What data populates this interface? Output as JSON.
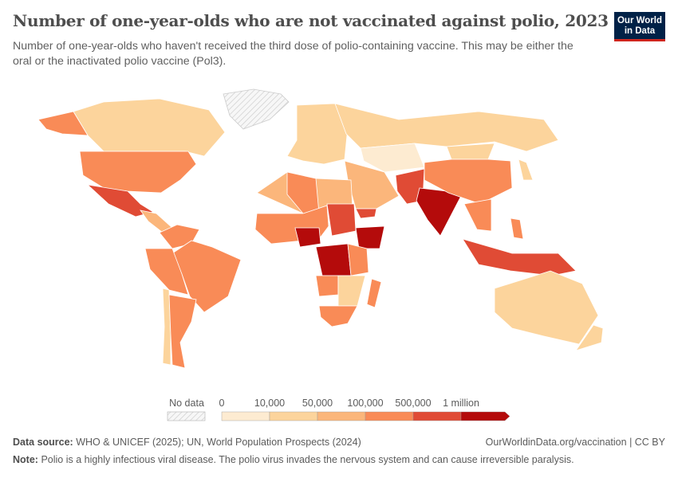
{
  "header": {
    "title": "Number of one-year-olds who are not vaccinated against polio, 2023",
    "subtitle": "Number of one-year-olds who haven't received the third dose of polio-containing vaccine. This may be either the oral or the inactivated polio vaccine (Pol3).",
    "logo_text": "Our World in Data"
  },
  "chart_data": {
    "type": "choropleth-map",
    "year": 2023,
    "legend": {
      "no_data_label": "No data",
      "tick_labels": [
        "0",
        "10,000",
        "50,000",
        "100,000",
        "500,000",
        "1 million"
      ],
      "bins": [
        {
          "range": [
            0,
            10000
          ],
          "color": "#fdebd1"
        },
        {
          "range": [
            10000,
            50000
          ],
          "color": "#fcd49c"
        },
        {
          "range": [
            50000,
            100000
          ],
          "color": "#fbb67b"
        },
        {
          "range": [
            100000,
            500000
          ],
          "color": "#f98b57"
        },
        {
          "range": [
            500000,
            1000000
          ],
          "color": "#e04b35"
        },
        {
          "range": [
            1000000,
            null
          ],
          "color": "#b40b0b"
        }
      ],
      "no_data_color": "hatched"
    },
    "regions": [
      {
        "name": "Greenland",
        "bin": -1
      },
      {
        "name": "Canada",
        "bin": 1
      },
      {
        "name": "Alaska",
        "bin": 3
      },
      {
        "name": "United States",
        "bin": 3
      },
      {
        "name": "Mexico",
        "bin": 4
      },
      {
        "name": "Central America",
        "bin": 2
      },
      {
        "name": "Colombia / Venezuela",
        "bin": 3
      },
      {
        "name": "Brazil",
        "bin": 3
      },
      {
        "name": "Peru / Bolivia",
        "bin": 3
      },
      {
        "name": "Chile",
        "bin": 1
      },
      {
        "name": "Argentina",
        "bin": 3
      },
      {
        "name": "Europe",
        "bin": 1
      },
      {
        "name": "Russia",
        "bin": 1
      },
      {
        "name": "Central Asia",
        "bin": 0
      },
      {
        "name": "Mongolia",
        "bin": 1
      },
      {
        "name": "Middle East",
        "bin": 2
      },
      {
        "name": "Yemen",
        "bin": 4
      },
      {
        "name": "Pakistan / Afghanistan",
        "bin": 4
      },
      {
        "name": "India",
        "bin": 5
      },
      {
        "name": "China",
        "bin": 3
      },
      {
        "name": "Japan",
        "bin": 1
      },
      {
        "name": "Southeast Asia",
        "bin": 3
      },
      {
        "name": "Philippines",
        "bin": 3
      },
      {
        "name": "Indonesia",
        "bin": 4
      },
      {
        "name": "Australia",
        "bin": 1
      },
      {
        "name": "New Zealand",
        "bin": 1
      },
      {
        "name": "North Africa",
        "bin": 2
      },
      {
        "name": "Algeria",
        "bin": 3
      },
      {
        "name": "West Africa",
        "bin": 3
      },
      {
        "name": "Nigeria",
        "bin": 5
      },
      {
        "name": "Sudan",
        "bin": 4
      },
      {
        "name": "Ethiopia",
        "bin": 5
      },
      {
        "name": "DR Congo",
        "bin": 5
      },
      {
        "name": "East Africa",
        "bin": 3
      },
      {
        "name": "Angola",
        "bin": 3
      },
      {
        "name": "Southern Africa",
        "bin": 1
      },
      {
        "name": "South Africa",
        "bin": 3
      },
      {
        "name": "Madagascar",
        "bin": 3
      }
    ]
  },
  "footer": {
    "source_label": "Data source:",
    "source_text": "WHO & UNICEF (2025); UN, World Population Prospects (2024)",
    "url": "OurWorldinData.org/vaccination | CC BY",
    "note_label": "Note:",
    "note_text": "Polio is a highly infectious viral disease. The polio virus invades the nervous system and can cause irreversible paralysis."
  }
}
